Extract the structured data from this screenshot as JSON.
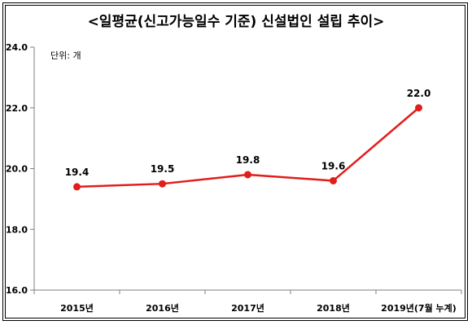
{
  "chart_data": {
    "type": "line",
    "title": "<일평균(신고가능일수 기준) 신설법인 설립 추이>",
    "unit_label": "단위: 개",
    "categories": [
      "2015년",
      "2016년",
      "2017년",
      "2018년",
      "2019년(7월 누계)"
    ],
    "series": [
      {
        "values": [
          19.4,
          19.5,
          19.8,
          19.6,
          22.0
        ]
      }
    ],
    "data_labels": [
      "19.4",
      "19.5",
      "19.8",
      "19.6",
      "22.0"
    ],
    "yticks": [
      "16.0",
      "18.0",
      "20.0",
      "22.0",
      "24.0"
    ],
    "ylim": [
      16,
      24
    ],
    "grid": false,
    "line_color": "#e31c1c",
    "axis_color": "#7f7f7f"
  }
}
